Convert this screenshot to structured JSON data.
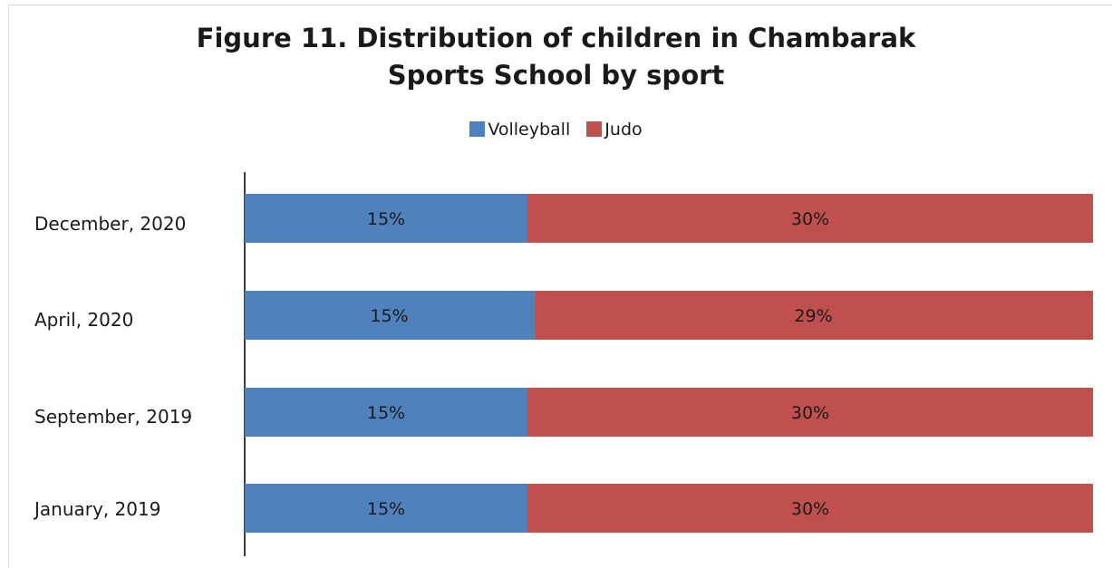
{
  "chart_data": {
    "type": "bar",
    "orientation": "horizontal",
    "stacking": "percent",
    "title": "Figure 11. Distribution of children in Chambarak Sports School by sport",
    "title_lines": [
      "Figure 11. Distribution of children in Chambarak",
      "Sports School by sport"
    ],
    "legend_position": "top",
    "grid": false,
    "categories": [
      "December, 2020",
      "April, 2020",
      "September, 2019",
      "January, 2019"
    ],
    "series": [
      {
        "name": "Volleyball",
        "color": "#4f81bd",
        "values": [
          15,
          15,
          15,
          15
        ],
        "labels": [
          "15%",
          "15%",
          "15%",
          "15%"
        ]
      },
      {
        "name": "Judo",
        "color": "#c0504d",
        "values": [
          30,
          29,
          30,
          30
        ],
        "labels": [
          "30%",
          "29%",
          "30%",
          "30%"
        ]
      }
    ]
  }
}
